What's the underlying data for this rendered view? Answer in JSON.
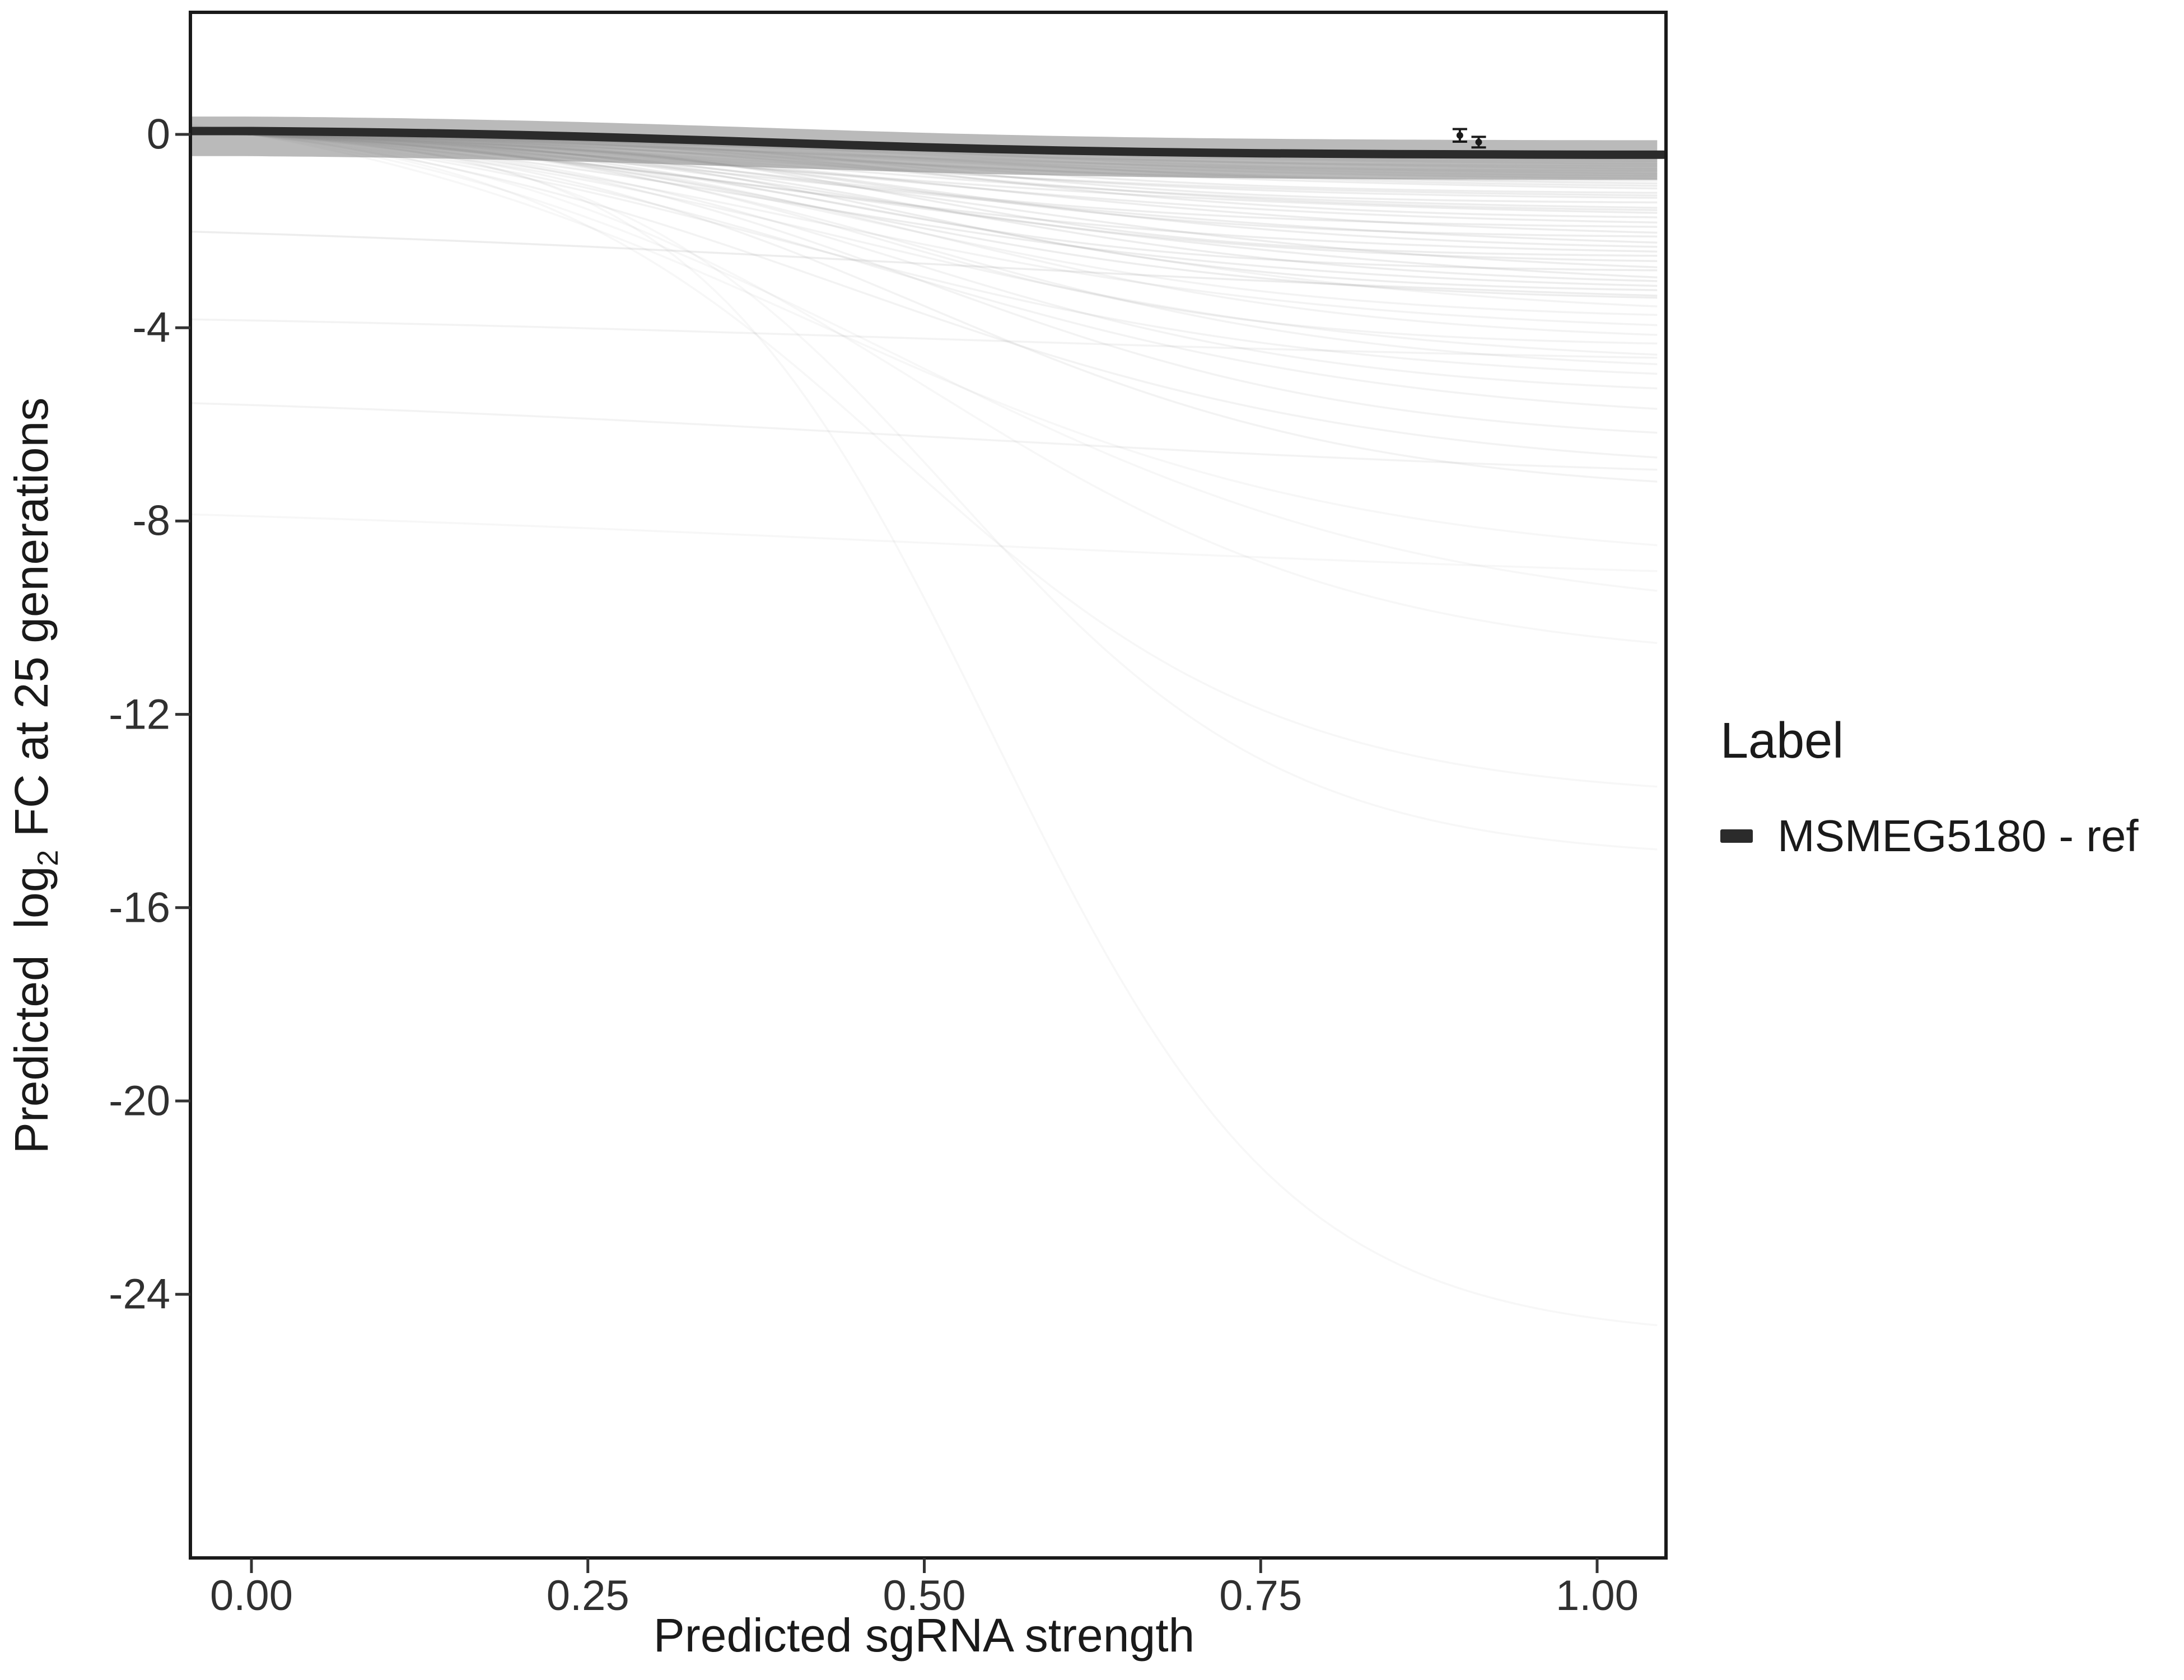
{
  "figure": {
    "background": "#ffffff",
    "panel_border_color": "#1a1a1a",
    "tick_color": "#333333",
    "text_color": "#212121"
  },
  "chart_data": {
    "type": "line",
    "title": "",
    "xlabel": "Predicted sgRNA strength",
    "ylabel": "Predicted  log2 FC at 25 generations",
    "ylabel_parts": {
      "pre": "Predicted  log",
      "sub": "2",
      "post": " FC at 25 generations"
    },
    "xlim": [
      0,
      1
    ],
    "ylim": [
      -29.5,
      2.5
    ],
    "grid": "off",
    "legend_position": "right",
    "x_ticks": [
      {
        "value": 0.0,
        "label": "0.00"
      },
      {
        "value": 0.25,
        "label": "0.25"
      },
      {
        "value": 0.5,
        "label": "0.50"
      },
      {
        "value": 0.75,
        "label": "0.75"
      },
      {
        "value": 1.0,
        "label": "1.00"
      }
    ],
    "y_ticks": [
      {
        "value": 0,
        "label": "0"
      },
      {
        "value": -4,
        "label": "-4"
      },
      {
        "value": -8,
        "label": "-8"
      },
      {
        "value": -12,
        "label": "-12"
      },
      {
        "value": -16,
        "label": "-16"
      },
      {
        "value": -20,
        "label": "-20"
      },
      {
        "value": -24,
        "label": "-24"
      }
    ],
    "legend": {
      "title": "Label",
      "entries": [
        {
          "label": "MSMEG5180 - ref",
          "color": "#2b2b2b"
        }
      ]
    },
    "reference_series": {
      "name": "MSMEG5180 - ref",
      "color": "#2b2b2b",
      "width": 15,
      "x": [
        0.0,
        0.05,
        0.1,
        0.15,
        0.2,
        0.25,
        0.3,
        0.35,
        0.4,
        0.45,
        0.5,
        0.55,
        0.6,
        0.65,
        0.7,
        0.75,
        0.8,
        0.85,
        0.9,
        0.95,
        1.0
      ],
      "y": [
        0.07,
        0.057,
        0.039,
        0.016,
        -0.013,
        -0.048,
        -0.089,
        -0.133,
        -0.18,
        -0.225,
        -0.267,
        -0.303,
        -0.333,
        -0.357,
        -0.376,
        -0.39,
        -0.4,
        -0.408,
        -0.413,
        -0.417,
        -0.42
      ]
    },
    "ribbon": {
      "above": 0.3,
      "below": 0.52,
      "color": "#8c8c8c",
      "opacity": 0.6
    },
    "background_lines": {
      "description": "Per-gene predicted depletion curves (unlabeled, light gray). Sigmoid parameters.",
      "color": "#8f8f8f",
      "width": 3.5,
      "format": [
        "yf",
        "k",
        "x0",
        "y0"
      ],
      "lines": [
        [
          -0.45,
          6,
          0.45,
          0
        ],
        [
          -0.5,
          5,
          0.4,
          0
        ],
        [
          -0.55,
          7,
          0.5,
          0
        ],
        [
          -0.6,
          4,
          0.38,
          0
        ],
        [
          -0.65,
          6,
          0.42,
          0
        ],
        [
          -0.7,
          5,
          0.48,
          0
        ],
        [
          -0.75,
          8,
          0.52,
          0
        ],
        [
          -0.8,
          4,
          0.36,
          0
        ],
        [
          -0.85,
          6,
          0.5,
          0
        ],
        [
          -0.9,
          5,
          0.44,
          0
        ],
        [
          -0.95,
          7,
          0.4,
          0
        ],
        [
          -1.0,
          5,
          0.46,
          0
        ],
        [
          -1.05,
          6,
          0.52,
          0
        ],
        [
          -1.1,
          4,
          0.4,
          0
        ],
        [
          -1.2,
          7,
          0.48,
          0
        ],
        [
          -1.25,
          5,
          0.38,
          0
        ],
        [
          -1.3,
          6,
          0.44,
          0
        ],
        [
          -1.4,
          8,
          0.5,
          0
        ],
        [
          -1.5,
          5,
          0.42,
          0
        ],
        [
          -1.55,
          6,
          0.48,
          0
        ],
        [
          -1.6,
          4,
          0.36,
          0
        ],
        [
          -1.7,
          7,
          0.52,
          0
        ],
        [
          -1.8,
          5,
          0.44,
          0
        ],
        [
          -1.9,
          6,
          0.4,
          0
        ],
        [
          -2.0,
          5,
          0.5,
          0
        ],
        [
          -2.1,
          7,
          0.46,
          0
        ],
        [
          -2.2,
          4,
          0.42,
          0
        ],
        [
          -2.3,
          6,
          0.5,
          0
        ],
        [
          -2.4,
          5,
          0.38,
          0
        ],
        [
          -2.5,
          8,
          0.48,
          0
        ],
        [
          -2.6,
          6,
          0.44,
          0
        ],
        [
          -2.7,
          5,
          0.52,
          0
        ],
        [
          -2.8,
          7,
          0.42,
          0
        ],
        [
          -2.9,
          4,
          0.46,
          0
        ],
        [
          -3.0,
          6,
          0.5,
          0
        ],
        [
          -3.1,
          5,
          0.4,
          0
        ],
        [
          -3.2,
          7,
          0.48,
          0
        ],
        [
          -3.35,
          6,
          0.44,
          0
        ],
        [
          -3.5,
          5,
          0.5,
          0
        ],
        [
          -3.7,
          6,
          0.46,
          0
        ],
        [
          -3.9,
          5,
          0.42,
          0
        ],
        [
          -4.1,
          6,
          0.5,
          0
        ],
        [
          -4.3,
          7,
          0.46,
          0
        ],
        [
          -4.5,
          5,
          0.44,
          0
        ],
        [
          -4.7,
          6,
          0.5,
          0
        ],
        [
          -4.9,
          5,
          0.4,
          0
        ],
        [
          -5.2,
          6,
          0.48,
          0
        ],
        [
          -5.6,
          5,
          0.46,
          0
        ],
        [
          -6.1,
          6,
          0.5,
          0
        ],
        [
          -6.6,
          5,
          0.44,
          0
        ],
        [
          -7.1,
          6,
          0.5,
          0
        ],
        [
          -8.4,
          5,
          0.42,
          0
        ],
        [
          -9.3,
          5,
          0.48,
          0
        ],
        [
          -10.4,
          6,
          0.5,
          0
        ],
        [
          -13.4,
          7,
          0.48,
          0
        ],
        [
          -14.7,
          8,
          0.52,
          0
        ],
        [
          -24.5,
          9,
          0.55,
          0
        ],
        [
          -3.3,
          3,
          0.5,
          -2.05
        ],
        [
          -4.6,
          3,
          0.5,
          -3.85
        ],
        [
          -6.9,
          3,
          0.5,
          -5.6
        ],
        [
          -9.0,
          2.5,
          0.5,
          -7.9
        ]
      ]
    },
    "error_points": [
      {
        "x": 0.898,
        "y": -0.02,
        "lo": -0.15,
        "hi": 0.11
      },
      {
        "x": 0.912,
        "y": -0.16,
        "lo": -0.27,
        "hi": -0.05
      }
    ]
  }
}
